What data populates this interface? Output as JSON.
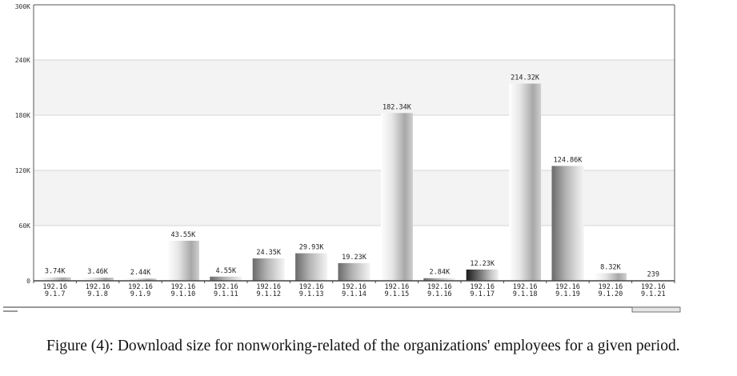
{
  "caption": "Figure (4): Download size for nonworking-related of the organizations' employees for a given period.",
  "chart_data": {
    "type": "bar",
    "title": "",
    "xlabel": "",
    "ylabel": "",
    "ylim": [
      0,
      300000
    ],
    "y_ticks": [
      0,
      60000,
      120000,
      180000,
      240000,
      300000
    ],
    "y_tick_labels": [
      "0",
      "60K",
      "120K",
      "180K",
      "240K",
      "300K"
    ],
    "grid": "horizontal",
    "alternating_bands": true,
    "categories": [
      [
        "192.16",
        "9.1.7"
      ],
      [
        "192.16",
        "9.1.8"
      ],
      [
        "192.16",
        "9.1.9"
      ],
      [
        "192.16",
        "9.1.10"
      ],
      [
        "192.16",
        "9.1.11"
      ],
      [
        "192.16",
        "9.1.12"
      ],
      [
        "192.16",
        "9.1.13"
      ],
      [
        "192.16",
        "9.1.14"
      ],
      [
        "192.16",
        "9.1.15"
      ],
      [
        "192.16",
        "9.1.16"
      ],
      [
        "192.16",
        "9.1.17"
      ],
      [
        "192.16",
        "9.1.18"
      ],
      [
        "192.16",
        "9.1.19"
      ],
      [
        "192.16",
        "9.1.20"
      ],
      [
        "192.16",
        "9.1.21"
      ]
    ],
    "values": [
      3740,
      3460,
      2440,
      43550,
      4550,
      24350,
      29930,
      19230,
      182340,
      2840,
      12230,
      214320,
      124860,
      8320,
      239
    ],
    "data_labels": [
      "3.74K",
      "3.46K",
      "2.44K",
      "43.55K",
      "4.55K",
      "24.35K",
      "29.93K",
      "19.23K",
      "182.34K",
      "2.84K",
      "12.23K",
      "214.32K",
      "124.86K",
      "8.32K",
      "239"
    ],
    "bar_tones": [
      "light",
      "light",
      "light",
      "light",
      "dark",
      "dark",
      "dark",
      "dark",
      "light",
      "dark",
      "black",
      "light",
      "dark",
      "light",
      "light"
    ]
  },
  "colors": {
    "band": "#f3f3f3",
    "grid": "#d4d4d4",
    "axis": "#444444",
    "frame": "#555555"
  }
}
